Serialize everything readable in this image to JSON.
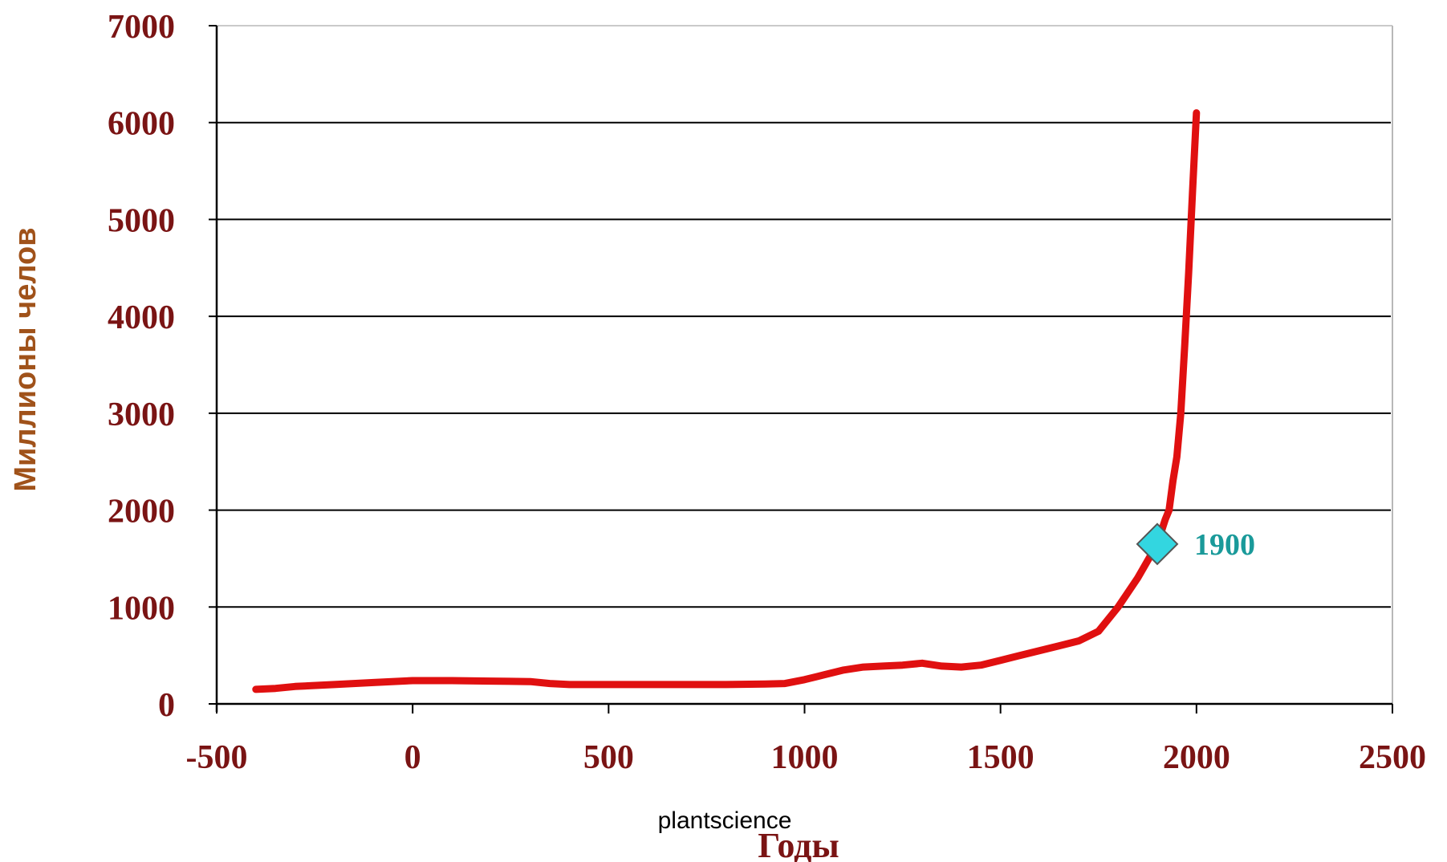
{
  "chart_data": {
    "type": "line",
    "title": "",
    "xlabel": "Годы",
    "ylabel": "Миллионы челов",
    "xlim": [
      -500,
      2500
    ],
    "ylim": [
      0,
      7000
    ],
    "x_ticks": [
      "-500",
      "0",
      "500",
      "1000",
      "1500",
      "2000",
      "2500"
    ],
    "y_ticks": [
      "0",
      "1000",
      "2000",
      "3000",
      "4000",
      "5000",
      "6000",
      "7000"
    ],
    "grid": "horizontal",
    "legend": "none",
    "series": [
      {
        "color": "#e01010",
        "x": [
          -400,
          -350,
          -300,
          -200,
          -100,
          0,
          100,
          200,
          300,
          350,
          400,
          500,
          600,
          700,
          800,
          900,
          950,
          1000,
          1050,
          1100,
          1150,
          1200,
          1250,
          1300,
          1350,
          1400,
          1450,
          1500,
          1550,
          1600,
          1650,
          1700,
          1750,
          1800,
          1850,
          1900,
          1920,
          1930,
          1940,
          1950,
          1960,
          1970,
          1980,
          1990,
          2000
        ],
        "y": [
          150,
          160,
          180,
          200,
          220,
          240,
          240,
          235,
          230,
          210,
          200,
          200,
          200,
          200,
          200,
          205,
          210,
          250,
          300,
          350,
          380,
          390,
          400,
          420,
          390,
          380,
          400,
          450,
          500,
          550,
          600,
          650,
          750,
          1000,
          1300,
          1650,
          1900,
          2000,
          2300,
          2550,
          3000,
          3700,
          4450,
          5300,
          6100
        ]
      }
    ],
    "annotations": [
      {
        "x": 1900,
        "y": 1650,
        "label": "1900",
        "marker": "diamond",
        "marker_color": "#33d6e0"
      }
    ]
  },
  "watermark": "plantscience"
}
